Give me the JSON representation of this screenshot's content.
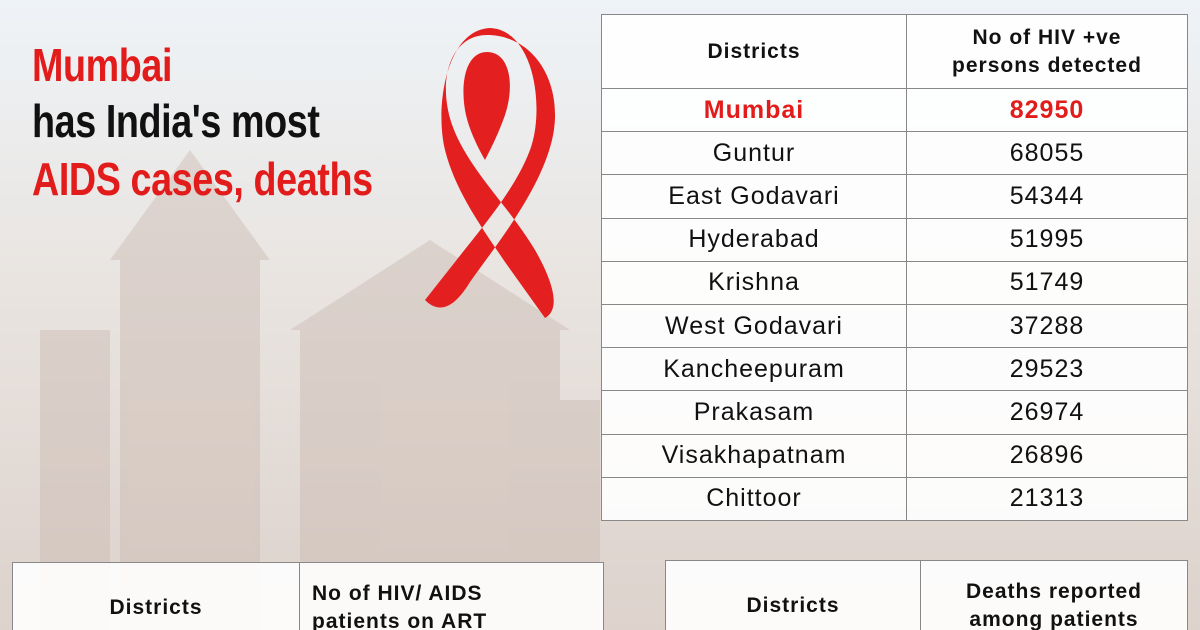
{
  "headline": {
    "line1": "Mumbai",
    "line2": "has India's most",
    "line3": "AIDS cases, deaths"
  },
  "table1": {
    "header": {
      "districts": "Districts",
      "count_line1": "No  of HIV +ve",
      "count_line2": "persons  detected"
    },
    "rows": [
      [
        "Mumbai",
        82950
      ],
      [
        "Guntur",
        68055
      ],
      [
        "East Godavari",
        54344
      ],
      [
        "Hyderabad",
        51995
      ],
      [
        "Krishna",
        51749
      ],
      [
        "West Godavari",
        37288
      ],
      [
        "Kancheepuram",
        29523
      ],
      [
        "Prakasam",
        26974
      ],
      [
        "Visakhapatnam",
        26896
      ],
      [
        "Chittoor",
        21313
      ]
    ]
  },
  "table2": {
    "header": {
      "districts": "Districts",
      "count_line1": "No   of HIV/ AIDS",
      "count_line2": "patients on ART"
    }
  },
  "table3": {
    "header": {
      "districts": "Districts",
      "count_line1": "Deaths reported",
      "count_line2": "among patients"
    }
  }
}
